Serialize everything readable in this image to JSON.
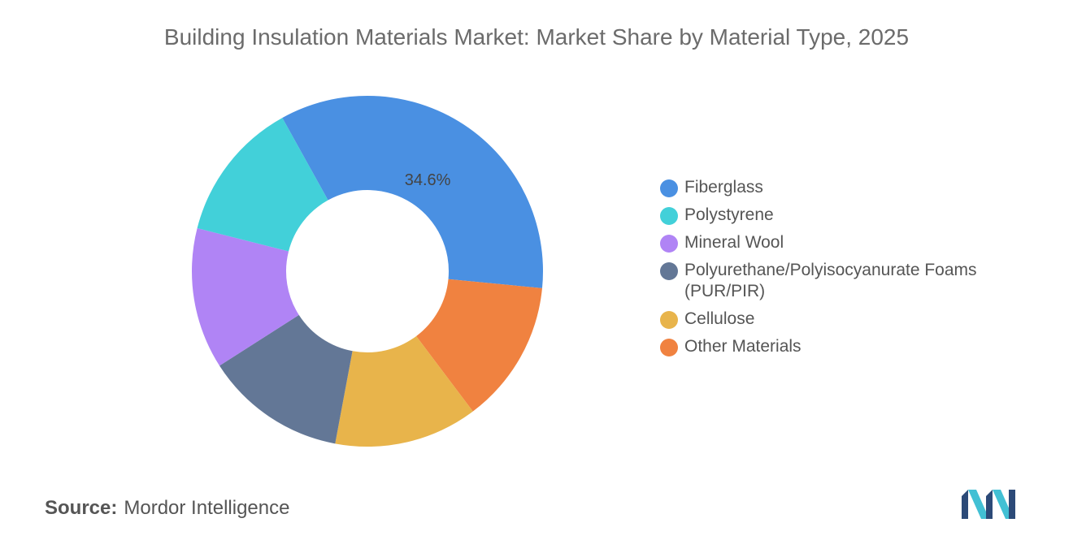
{
  "title": "Building Insulation Materials Market: Market Share by Material Type, 2025",
  "source": {
    "key": "Source:",
    "value": "Mordor Intelligence"
  },
  "chart_data": {
    "type": "pie",
    "variant": "donut",
    "legend_position": "right",
    "slices": [
      {
        "label": "Fiberglass",
        "value": 34.6,
        "color": "#4a90e2",
        "data_label": "34.6%"
      },
      {
        "label": "Other Materials",
        "value": 13.2,
        "color": "#f08240",
        "data_label": ""
      },
      {
        "label": "Cellulose",
        "value": 13.2,
        "color": "#e8b44b",
        "data_label": ""
      },
      {
        "label": "Polyurethane/Polyisocyanurate Foams (PUR/PIR)",
        "value": 13.0,
        "color": "#637796",
        "data_label": ""
      },
      {
        "label": "Mineral Wool",
        "value": 13.0,
        "color": "#b084f5",
        "data_label": ""
      },
      {
        "label": "Polystyrene",
        "value": 13.0,
        "color": "#42d0d9",
        "data_label": ""
      }
    ],
    "legend": [
      {
        "label": "Fiberglass",
        "color": "#4a90e2"
      },
      {
        "label": "Polystyrene",
        "color": "#42d0d9"
      },
      {
        "label": "Mineral Wool",
        "color": "#b084f5"
      },
      {
        "label": "Polyurethane/Polyisocyanurate Foams (PUR/PIR)",
        "color": "#637796"
      },
      {
        "label": "Cellulose",
        "color": "#e8b44b"
      },
      {
        "label": "Other Materials",
        "color": "#f08240"
      }
    ]
  },
  "logo": {
    "name": "mordor-intelligence-logo",
    "colors": [
      "#2c4a78",
      "#42c0d4"
    ]
  }
}
